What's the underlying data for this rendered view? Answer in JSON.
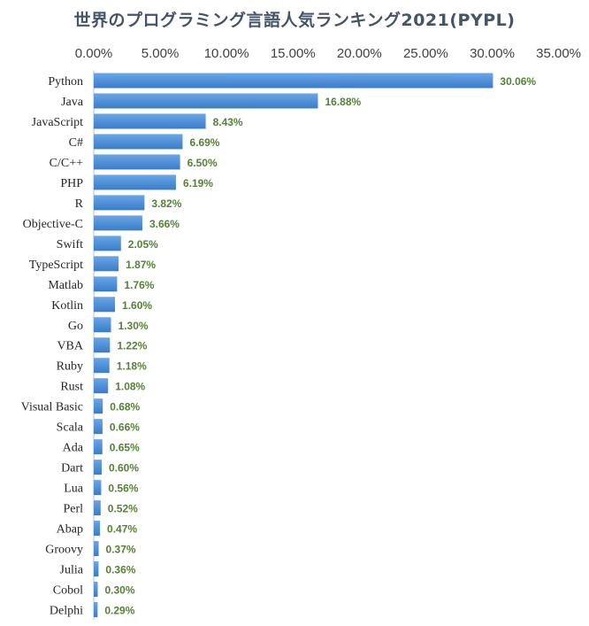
{
  "chart_data": {
    "type": "bar",
    "orientation": "horizontal",
    "title": "世界のプログラミング言語人気ランキング2021(PYPL)",
    "xlim": [
      0,
      35
    ],
    "x_ticks": [
      "0.00%",
      "5.00%",
      "10.00%",
      "15.00%",
      "20.00%",
      "25.00%",
      "30.00%",
      "35.00%"
    ],
    "x_axis_position": "top",
    "grid": false,
    "legend": "none",
    "bar_color": "#4a8fd8",
    "label_color": "#548235",
    "categories": [
      "Python",
      "Java",
      "JavaScript",
      "C#",
      "C/C++",
      "PHP",
      "R",
      "Objective-C",
      "Swift",
      "TypeScript",
      "Matlab",
      "Kotlin",
      "Go",
      "VBA",
      "Ruby",
      "Rust",
      "Visual Basic",
      "Scala",
      "Ada",
      "Dart",
      "Lua",
      "Perl",
      "Abap",
      "Groovy",
      "Julia",
      "Cobol",
      "Delphi"
    ],
    "values": [
      30.06,
      16.88,
      8.43,
      6.69,
      6.5,
      6.19,
      3.82,
      3.66,
      2.05,
      1.87,
      1.76,
      1.6,
      1.3,
      1.22,
      1.18,
      1.08,
      0.68,
      0.66,
      0.65,
      0.6,
      0.56,
      0.52,
      0.47,
      0.37,
      0.36,
      0.3,
      0.29
    ],
    "data_labels": [
      "30.06%",
      "16.88%",
      "8.43%",
      "6.69%",
      "6.50%",
      "6.19%",
      "3.82%",
      "3.66%",
      "2.05%",
      "1.87%",
      "1.76%",
      "1.60%",
      "1.30%",
      "1.22%",
      "1.18%",
      "1.08%",
      "0.68%",
      "0.66%",
      "0.65%",
      "0.60%",
      "0.56%",
      "0.52%",
      "0.47%",
      "0.37%",
      "0.36%",
      "0.30%",
      "0.29%"
    ]
  }
}
